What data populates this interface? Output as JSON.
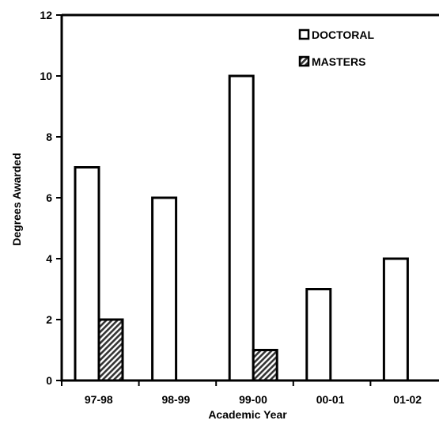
{
  "chart_data": {
    "type": "bar",
    "categories": [
      "97-98",
      "98-99",
      "99-00",
      "00-01",
      "01-02"
    ],
    "series": [
      {
        "name": "DOCTORAL",
        "values": [
          7,
          6,
          10,
          3,
          4
        ],
        "fill": "#ffffff",
        "pattern": "none"
      },
      {
        "name": "MASTERS",
        "values": [
          2,
          0,
          1,
          0,
          0
        ],
        "fill": "#808080",
        "pattern": "diagonal-hatch"
      }
    ],
    "title": "",
    "xlabel": "Academic Year",
    "ylabel": "Degrees Awarded",
    "ylim": [
      0,
      12
    ],
    "yticks": [
      0,
      2,
      4,
      6,
      8,
      10,
      12
    ],
    "grid": false,
    "legend": "top-right",
    "colors": {
      "axis": "#000000",
      "bar_outline": "#000000",
      "background": "#ffffff"
    }
  }
}
